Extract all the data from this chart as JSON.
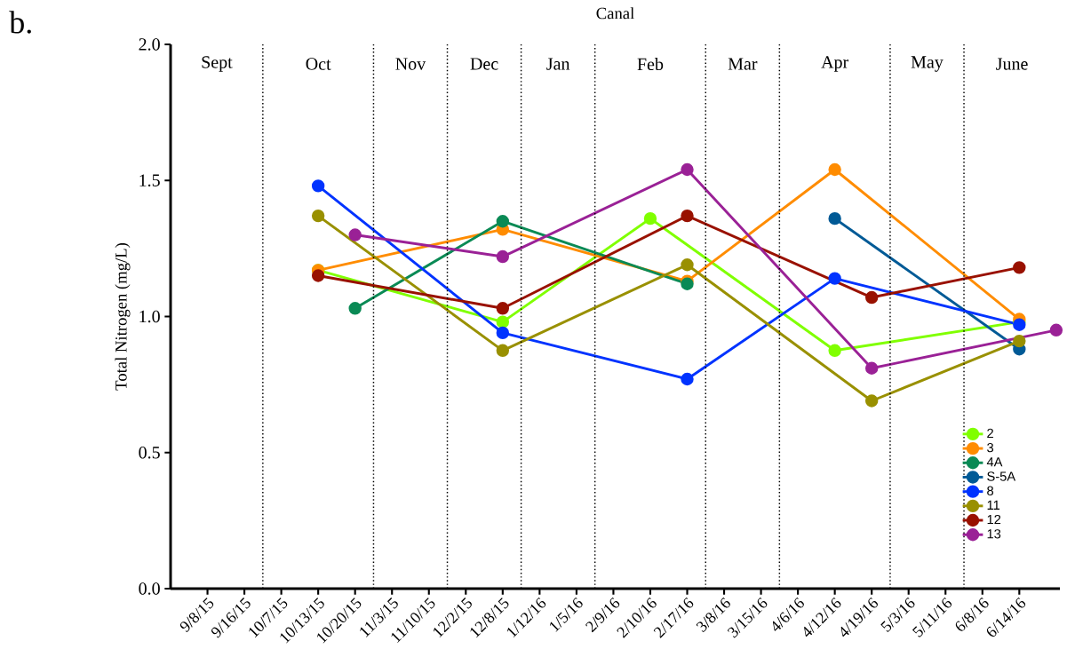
{
  "chart_data": {
    "type": "line",
    "title": "Canal",
    "ylabel": "Total Nitrogen (mg/L)",
    "annotations": [
      "b.",
      "Sept",
      "Oct",
      "Nov",
      "Dec",
      "Jan",
      "Feb",
      "Mar",
      "Apr",
      "May",
      "June"
    ],
    "categories": [
      "9/8/15",
      "9/16/15",
      "10/7/15",
      "10/13/15",
      "10/20/15",
      "11/3/15",
      "11/10/15",
      "12/2/15",
      "12/8/15",
      "1/12/16",
      "1/5/16",
      "2/9/16",
      "2/10/16",
      "2/17/16",
      "3/8/16",
      "3/15/16",
      "4/6/16",
      "4/12/16",
      "4/19/16",
      "5/3/16",
      "5/11/16",
      "6/8/16",
      "6/14/16",
      null
    ],
    "series": [
      {
        "name": "2",
        "color": "#80ff00",
        "values": [
          null,
          null,
          null,
          1.17,
          null,
          null,
          null,
          null,
          0.98,
          null,
          null,
          null,
          1.36,
          null,
          null,
          null,
          null,
          0.875,
          null,
          null,
          null,
          null,
          0.98,
          null
        ]
      },
      {
        "name": "3",
        "color": "#ff8c00",
        "values": [
          null,
          null,
          null,
          1.17,
          null,
          null,
          null,
          null,
          1.32,
          null,
          null,
          null,
          null,
          1.13,
          null,
          null,
          null,
          1.54,
          null,
          null,
          null,
          null,
          0.99,
          null
        ]
      },
      {
        "name": "4A",
        "color": "#0a8a55",
        "values": [
          null,
          null,
          null,
          null,
          1.03,
          null,
          null,
          null,
          1.35,
          null,
          null,
          null,
          null,
          1.12,
          null,
          null,
          null,
          null,
          null,
          null,
          null,
          null,
          null,
          null
        ]
      },
      {
        "name": "S-5A",
        "color": "#005a96",
        "values": [
          null,
          null,
          null,
          null,
          null,
          null,
          null,
          null,
          null,
          null,
          null,
          null,
          null,
          null,
          null,
          null,
          null,
          1.36,
          null,
          null,
          null,
          null,
          0.88,
          null
        ]
      },
      {
        "name": "8",
        "color": "#0033ff",
        "values": [
          null,
          null,
          null,
          1.48,
          null,
          null,
          null,
          null,
          0.94,
          null,
          null,
          null,
          null,
          0.77,
          null,
          null,
          null,
          1.14,
          null,
          null,
          null,
          null,
          0.97,
          null
        ]
      },
      {
        "name": "11",
        "color": "#999000",
        "values": [
          null,
          null,
          null,
          1.37,
          null,
          null,
          null,
          null,
          0.875,
          null,
          null,
          null,
          null,
          1.19,
          null,
          null,
          null,
          null,
          0.69,
          null,
          null,
          null,
          0.91,
          null
        ]
      },
      {
        "name": "12",
        "color": "#991100",
        "values": [
          null,
          null,
          null,
          1.15,
          null,
          null,
          null,
          null,
          1.03,
          null,
          null,
          null,
          null,
          1.37,
          null,
          null,
          null,
          null,
          1.07,
          null,
          null,
          null,
          1.18,
          null
        ]
      },
      {
        "name": "13",
        "color": "#9a2196",
        "values": [
          null,
          null,
          null,
          null,
          1.3,
          null,
          null,
          null,
          1.22,
          null,
          null,
          null,
          null,
          1.54,
          null,
          null,
          null,
          null,
          0.81,
          null,
          null,
          null,
          null,
          0.95
        ]
      }
    ],
    "ylim": [
      0,
      2
    ],
    "yticks": [
      {
        "value": 0,
        "label": "0.0"
      },
      {
        "value": 0.5,
        "label": "0.5"
      },
      {
        "value": 1,
        "label": "1.0"
      },
      {
        "value": 1.5,
        "label": "1.5"
      },
      {
        "value": 2,
        "label": "2.0"
      }
    ],
    "marker": "circle",
    "legend": "bottom right"
  }
}
